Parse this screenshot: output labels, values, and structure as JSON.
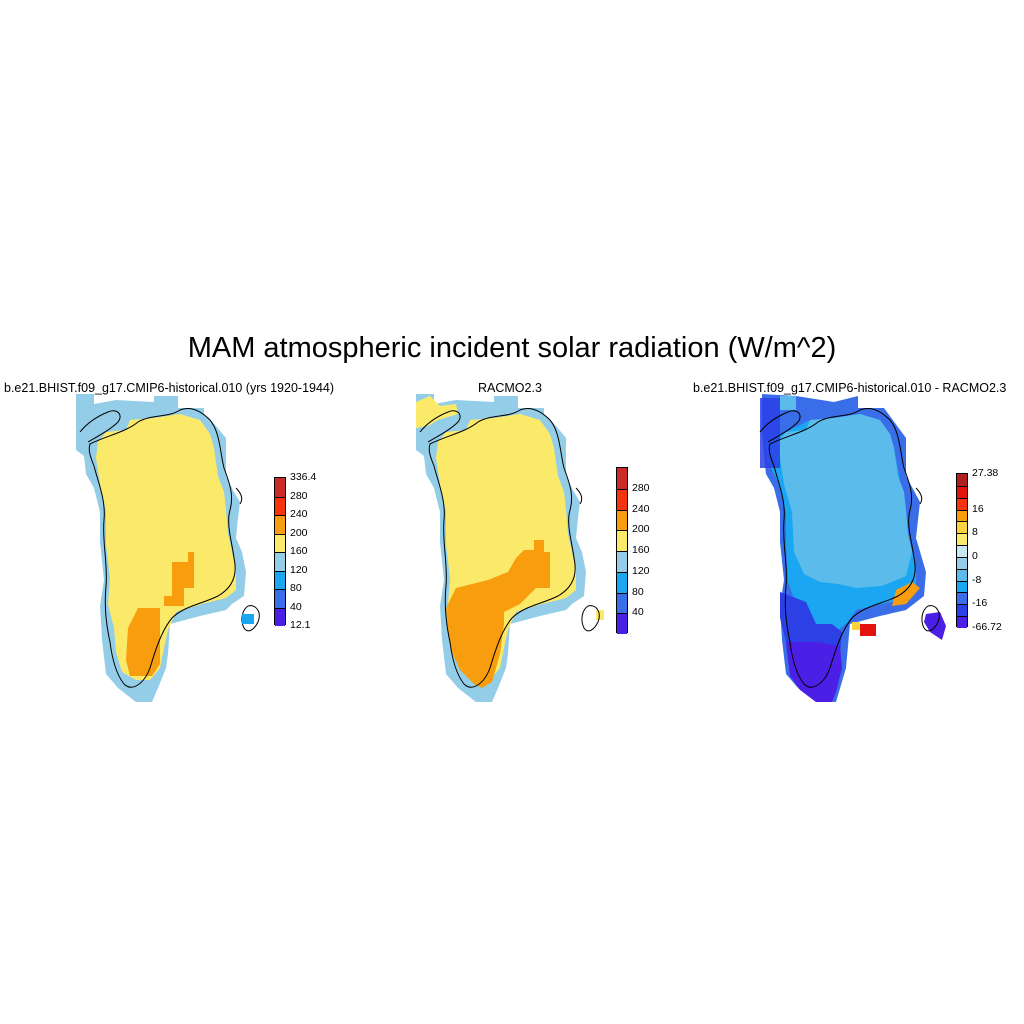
{
  "title": "MAM atmospheric incident solar radiation (W/m^2)",
  "panels": [
    {
      "title": "b.e21.BHIST.f09_g17.CMIP6-historical.010 (yrs 1920-1944)",
      "colorbar": {
        "colors": [
          "#4b1fe6",
          "#3a6ee8",
          "#1aa6f0",
          "#93cde8",
          "#fbea6a",
          "#f89d0e",
          "#f7330e",
          "#cc2a28"
        ],
        "labels": [
          "12.1",
          "40",
          "80",
          "120",
          "160",
          "200",
          "240",
          "280",
          "336.4"
        ]
      }
    },
    {
      "title": "RACMO2.3",
      "colorbar": {
        "colors": [
          "#4b1fe6",
          "#3a6ee8",
          "#1aa6f0",
          "#93cde8",
          "#fbea6a",
          "#f89d0e",
          "#f7330e",
          "#cc2a28"
        ],
        "labels": [
          "",
          "40",
          "80",
          "120",
          "160",
          "200",
          "240",
          "280",
          ""
        ]
      }
    },
    {
      "title": "b.e21.BHIST.f09_g17.CMIP6-historical.010 - RACMO2.3",
      "colorbar": {
        "colors": [
          "#4b1fe6",
          "#2c40e6",
          "#3a6ee8",
          "#1aa6f0",
          "#5bbcec",
          "#93cde8",
          "#c6e6f2",
          "#fbea6a",
          "#fcd23f",
          "#f89d0e",
          "#f7330e",
          "#e3140e",
          "#b0201f"
        ],
        "labels": [
          "-66.72",
          "",
          "-16",
          "",
          "-8",
          "",
          "0",
          "",
          "8",
          "",
          "16",
          "",
          "",
          "27.38"
        ]
      }
    }
  ]
}
